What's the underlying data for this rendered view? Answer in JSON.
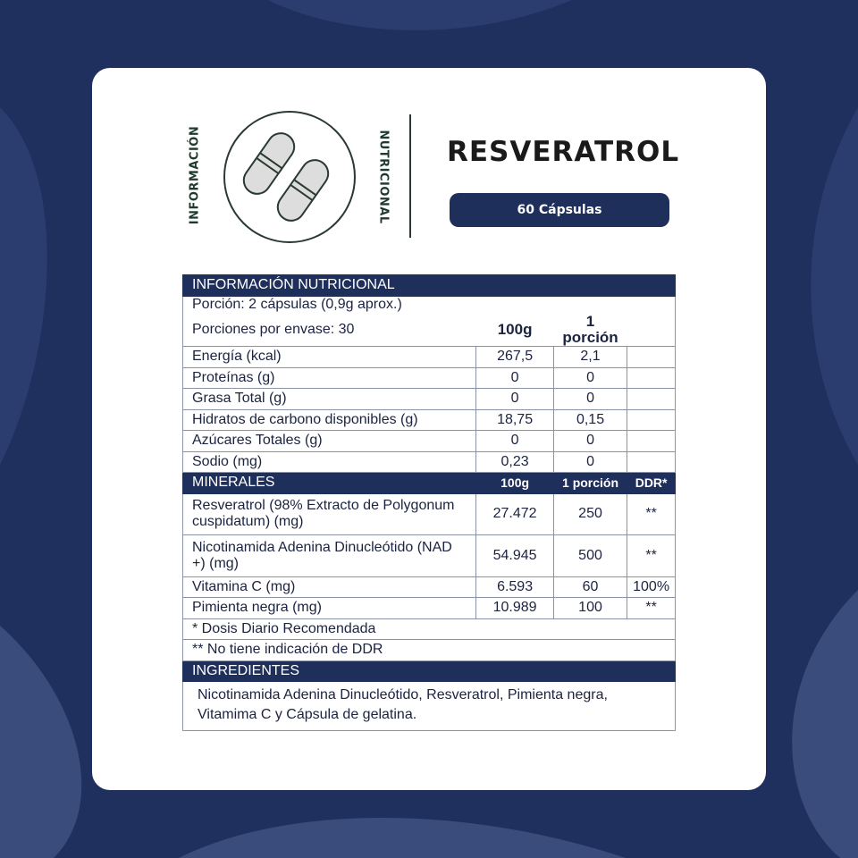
{
  "header": {
    "left_vertical": "INFORMACIÓN",
    "right_vertical": "NUTRICIONAL",
    "product": "RESVERATROL",
    "badge": "60 Cápsulas"
  },
  "colors": {
    "navy": "#1e2f5c",
    "background": "#1f2f5e"
  },
  "icons": [
    "capsules-icon"
  ],
  "table": {
    "title": "INFORMACIÓN NUTRICIONAL",
    "portion": "Porción: 2 cápsulas (0,9g aprox.)",
    "servings": "Porciones por envase: 30",
    "col_100g": "100g",
    "col_portion": "1 porción",
    "rows": [
      {
        "label": "Energía (kcal)",
        "g100": "267,5",
        "portion": "2,1"
      },
      {
        "label": "Proteínas (g)",
        "g100": "0",
        "portion": "0"
      },
      {
        "label": "Grasa Total (g)",
        "g100": "0",
        "portion": "0"
      },
      {
        "label": "Hidratos de carbono disponibles (g)",
        "g100": "18,75",
        "portion": "0,15"
      },
      {
        "label": "Azúcares Totales (g)",
        "g100": "0",
        "portion": "0"
      },
      {
        "label": "Sodio (mg)",
        "g100": "0,23",
        "portion": "0"
      }
    ],
    "minerals": {
      "title": "MINERALES",
      "col_100g": "100g",
      "col_portion": "1 porción",
      "col_ddr": "DDR*",
      "rows": [
        {
          "label": "Resveratrol (98% Extracto de Polygonum cuspidatum) (mg)",
          "g100": "27.472",
          "portion": "250",
          "ddr": "**"
        },
        {
          "label": "Nicotinamida Adenina Dinucleótido (NAD +) (mg)",
          "g100": "54.945",
          "portion": "500",
          "ddr": "**"
        },
        {
          "label": "Vitamina C (mg)",
          "g100": "6.593",
          "portion": "60",
          "ddr": "100%"
        },
        {
          "label": "Pimienta negra (mg)",
          "g100": "10.989",
          "portion": "100",
          "ddr": "**"
        }
      ]
    },
    "footnote1": "* Dosis Diario Recomendada",
    "footnote2": "** No tiene indicación de DDR",
    "ingredients_title": "INGREDIENTES",
    "ingredients": "Nicotinamida Adenina Dinucleótido, Resveratrol, Pimienta negra, Vitamima C y Cápsula de gelatina."
  }
}
